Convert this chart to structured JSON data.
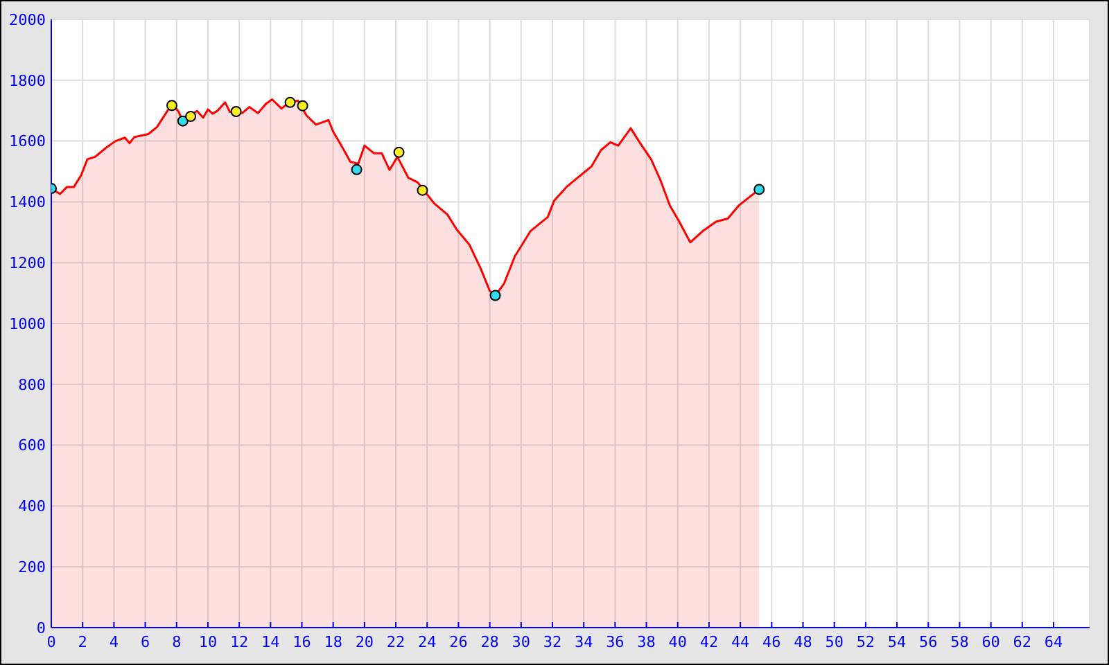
{
  "chart_data": {
    "type": "area",
    "xlim": [
      0,
      66.3
    ],
    "ylim": [
      0,
      2000
    ],
    "xticks": [
      0,
      2,
      4,
      6,
      8,
      10,
      12,
      14,
      16,
      18,
      20,
      22,
      24,
      26,
      28,
      30,
      32,
      34,
      36,
      38,
      40,
      42,
      44,
      46,
      48,
      50,
      52,
      54,
      56,
      58,
      60,
      62,
      64
    ],
    "yticks": [
      0,
      200,
      400,
      600,
      800,
      1000,
      1200,
      1400,
      1600,
      1800,
      2000
    ],
    "grid": true,
    "series": [
      {
        "type": "area",
        "color": "#ff0000",
        "marker": "none",
        "x": [
          0,
          0.56,
          1.0,
          1.44,
          1.9,
          2.3,
          2.8,
          3.5,
          4.1,
          4.7,
          5.0,
          5.3,
          6.2,
          6.75,
          7.7,
          8.1,
          8.4,
          8.8,
          9.3,
          9.7,
          10.0,
          10.3,
          10.6,
          11.1,
          11.4,
          11.8,
          12.2,
          12.65,
          13.2,
          13.7,
          14.1,
          14.7,
          15.2,
          15.75,
          16.3,
          16.9,
          17.7,
          18.0,
          18.6,
          19.1,
          19.6,
          20.0,
          20.6,
          21.1,
          21.6,
          22.1,
          22.8,
          23.4,
          24.45,
          25.3,
          25.9,
          26.7,
          27.4,
          28.0,
          28.35,
          28.9,
          29.6,
          30.6,
          31.7,
          32.1,
          32.9,
          33.6,
          34.5,
          35.1,
          35.7,
          36.2,
          37.0,
          37.6,
          38.3,
          38.9,
          39.5,
          40.1,
          40.8,
          41.6,
          42.45,
          43.2,
          43.9,
          45.2
        ],
        "values": [
          1444,
          1426,
          1449,
          1449,
          1487,
          1540,
          1548,
          1578,
          1600,
          1611,
          1593,
          1613,
          1623,
          1646,
          1722,
          1699,
          1666,
          1681,
          1699,
          1677,
          1704,
          1690,
          1699,
          1727,
          1696,
          1699,
          1692,
          1712,
          1692,
          1722,
          1737,
          1707,
          1727,
          1733,
          1684,
          1654,
          1669,
          1631,
          1578,
          1532,
          1525,
          1585,
          1560,
          1560,
          1505,
          1548,
          1479,
          1464,
          1395,
          1358,
          1308,
          1259,
          1183,
          1107,
          1092,
          1130,
          1221,
          1304,
          1350,
          1403,
          1449,
          1479,
          1517,
          1570,
          1596,
          1585,
          1642,
          1593,
          1540,
          1471,
          1388,
          1335,
          1267,
          1304,
          1335,
          1345,
          1388,
          1441
        ]
      },
      {
        "type": "scatter",
        "color": "#33dded",
        "marker": "circle",
        "x": [
          0,
          8.4,
          19.5,
          28.35,
          45.2
        ],
        "values": [
          1444,
          1666,
          1506,
          1092,
          1441
        ]
      },
      {
        "type": "scatter",
        "color": "#ffee22",
        "marker": "circle",
        "x": [
          7.7,
          8.9,
          11.8,
          15.25,
          16.05,
          22.2,
          23.7
        ],
        "values": [
          1717,
          1681,
          1697,
          1727,
          1716,
          1563,
          1438
        ]
      }
    ]
  }
}
